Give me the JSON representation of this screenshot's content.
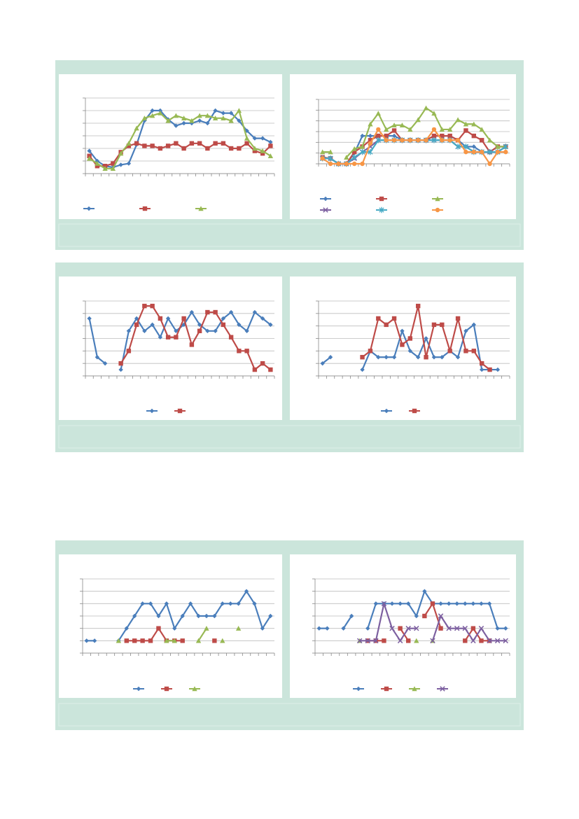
{
  "chart_data": [
    {
      "type": "line",
      "ylim": [
        0,
        6
      ],
      "yticks": [
        0,
        1,
        2,
        3,
        4,
        5,
        6
      ],
      "grid": true,
      "series": [
        {
          "color": "#4a7ebb",
          "marker": "diamond",
          "values": [
            1.8,
            1.0,
            0.6,
            0.5,
            0.7,
            0.8,
            2.3,
            4.2,
            5.0,
            5.0,
            4.3,
            3.8,
            4.0,
            4.0,
            4.2,
            4.0,
            5.0,
            4.8,
            4.8,
            4.2,
            3.4,
            2.8,
            2.8,
            2.5
          ]
        },
        {
          "color": "#be4b48",
          "marker": "square",
          "values": [
            1.4,
            0.6,
            0.6,
            0.8,
            1.7,
            2.2,
            2.4,
            2.2,
            2.2,
            2.0,
            2.2,
            2.4,
            2.0,
            2.4,
            2.4,
            2.0,
            2.4,
            2.4,
            2.0,
            2.0,
            2.4,
            1.8,
            1.6,
            2.2
          ]
        },
        {
          "color": "#98b954",
          "marker": "triangle",
          "values": [
            1.2,
            0.8,
            0.4,
            0.4,
            1.6,
            2.4,
            3.6,
            4.4,
            4.6,
            4.8,
            4.2,
            4.6,
            4.4,
            4.2,
            4.6,
            4.6,
            4.4,
            4.4,
            4.2,
            5.0,
            2.8,
            2.0,
            1.8,
            1.4
          ]
        }
      ]
    },
    {
      "type": "line",
      "ylim": [
        0,
        6
      ],
      "yticks": [
        0,
        1,
        2,
        3,
        4,
        5,
        6
      ],
      "grid": true,
      "series": [
        {
          "color": "#4a7ebb",
          "marker": "diamond",
          "values": [
            0.6,
            0.5,
            0,
            0,
            1.0,
            2.6,
            2.6,
            2.6,
            2.6,
            2.6,
            2.2,
            2.2,
            2.2,
            2.2,
            2.6,
            2.6,
            2.6,
            2.2,
            1.6,
            1.6,
            1.1,
            1.1,
            1.6,
            1.6
          ]
        },
        {
          "color": "#be4b48",
          "marker": "square",
          "values": [
            0.6,
            0.5,
            0,
            0,
            1.1,
            1.6,
            2.2,
            2.6,
            2.6,
            3.1,
            2.2,
            2.2,
            2.2,
            2.2,
            2.6,
            2.6,
            2.6,
            2.2,
            3.1,
            2.6,
            2.2,
            1.1,
            1.6,
            1.6
          ]
        },
        {
          "color": "#98b954",
          "marker": "triangle",
          "values": [
            1.1,
            1.1,
            null,
            0.6,
            1.4,
            1.6,
            3.7,
            4.7,
            3.2,
            3.6,
            3.6,
            3.2,
            4.1,
            5.2,
            4.7,
            3.2,
            3.2,
            4.1,
            3.7,
            3.7,
            3.2,
            2.2,
            1.6,
            1.6
          ]
        },
        {
          "color": "#7d60a0",
          "marker": "x",
          "values": [
            0.5,
            0.5,
            0,
            0,
            0.5,
            1.1,
            1.6,
            2.2,
            2.2,
            2.2,
            2.2,
            2.2,
            2.2,
            2.2,
            2.2,
            2.2,
            2.2,
            1.6,
            1.6,
            1.1,
            1.1,
            1.1,
            1.1,
            1.6
          ]
        },
        {
          "color": "#46aac5",
          "marker": "star",
          "values": [
            0.5,
            0.5,
            0,
            0,
            0.6,
            1.1,
            1.1,
            2.2,
            2.2,
            2.2,
            2.2,
            2.2,
            2.2,
            2.2,
            2.2,
            2.2,
            2.2,
            1.6,
            1.6,
            1.1,
            1.1,
            1.1,
            1.1,
            1.6
          ]
        },
        {
          "color": "#f79646",
          "marker": "circle",
          "values": [
            0.5,
            0,
            0,
            0,
            0,
            0,
            1.9,
            3.2,
            2.2,
            2.2,
            2.2,
            2.2,
            2.2,
            2.2,
            3.2,
            2.2,
            2.2,
            2.2,
            1.1,
            1.1,
            1.1,
            0,
            1.1,
            1.1
          ]
        }
      ]
    },
    {
      "type": "line",
      "ylim": [
        0,
        6
      ],
      "yticks": [
        0,
        1,
        2,
        3,
        4,
        5,
        6
      ],
      "grid": true,
      "series": [
        {
          "color": "#4a7ebb",
          "marker": "diamond",
          "values": [
            4.6,
            1.5,
            1.0,
            null,
            0.5,
            3.6,
            4.6,
            3.6,
            4.1,
            3.1,
            4.6,
            3.6,
            4.1,
            5.1,
            4.1,
            3.6,
            3.6,
            4.6,
            5.1,
            4.1,
            3.6,
            5.1,
            4.6,
            4.1
          ]
        },
        {
          "color": "#be4b48",
          "marker": "square",
          "values": [
            null,
            null,
            null,
            null,
            1.0,
            2.0,
            4.1,
            5.6,
            5.6,
            4.6,
            3.1,
            3.1,
            4.6,
            2.5,
            3.6,
            5.1,
            5.1,
            4.1,
            3.1,
            2.0,
            2.0,
            0.5,
            1.0,
            0.5
          ]
        }
      ]
    },
    {
      "type": "line",
      "ylim": [
        0,
        6
      ],
      "yticks": [
        0,
        1,
        2,
        3,
        4,
        5,
        6
      ],
      "grid": true,
      "series": [
        {
          "color": "#4a7ebb",
          "marker": "diamond",
          "values": [
            1.0,
            1.5,
            null,
            null,
            null,
            0.5,
            2.0,
            1.5,
            1.5,
            1.5,
            3.6,
            2.0,
            1.5,
            3.0,
            1.5,
            1.5,
            2.0,
            1.5,
            3.6,
            4.1,
            0.5,
            0.5,
            0.5,
            null
          ]
        },
        {
          "color": "#be4b48",
          "marker": "square",
          "values": [
            null,
            null,
            null,
            null,
            null,
            1.5,
            2.0,
            4.6,
            4.1,
            4.6,
            2.5,
            3.0,
            5.6,
            1.5,
            4.1,
            4.1,
            2.0,
            4.6,
            2.0,
            2.0,
            1.0,
            0.5,
            null,
            null
          ]
        }
      ]
    },
    {
      "type": "line",
      "ylim": [
        0,
        6
      ],
      "yticks": [
        0,
        1,
        2,
        3,
        4,
        5,
        6
      ],
      "grid": true,
      "series": [
        {
          "color": "#4a7ebb",
          "marker": "diamond",
          "values": [
            1,
            1,
            null,
            null,
            1,
            2,
            3,
            4,
            4,
            3,
            4,
            2,
            3,
            4,
            3,
            3,
            3,
            4,
            4,
            4,
            5,
            4,
            2,
            3
          ]
        },
        {
          "color": "#be4b48",
          "marker": "square",
          "values": [
            null,
            null,
            null,
            null,
            null,
            1,
            1,
            1,
            1,
            2,
            1,
            1,
            1,
            null,
            null,
            null,
            1,
            null,
            null,
            null,
            null,
            null,
            null,
            null
          ]
        },
        {
          "color": "#98b954",
          "marker": "triangle",
          "values": [
            null,
            null,
            null,
            null,
            1,
            null,
            null,
            null,
            null,
            null,
            1,
            1,
            null,
            null,
            1,
            2,
            null,
            1,
            null,
            2,
            null,
            null,
            null,
            null
          ]
        }
      ]
    },
    {
      "type": "line",
      "ylim": [
        0,
        6
      ],
      "yticks": [
        0,
        1,
        2,
        3,
        4,
        5,
        6
      ],
      "grid": true,
      "series": [
        {
          "color": "#4a7ebb",
          "marker": "diamond",
          "values": [
            2,
            2,
            null,
            2,
            3,
            null,
            2,
            4,
            4,
            4,
            4,
            4,
            3,
            5,
            4,
            4,
            4,
            4,
            4,
            4,
            4,
            4,
            2,
            2
          ]
        },
        {
          "color": "#be4b48",
          "marker": "square",
          "values": [
            null,
            null,
            null,
            null,
            null,
            null,
            1,
            1,
            1,
            null,
            2,
            1,
            null,
            3,
            4,
            2,
            null,
            null,
            1,
            2,
            1,
            1,
            null,
            null
          ]
        },
        {
          "color": "#98b954",
          "marker": "triangle",
          "values": [
            null,
            null,
            null,
            null,
            null,
            1,
            null,
            null,
            null,
            null,
            null,
            null,
            1,
            null,
            1,
            null,
            null,
            null,
            null,
            null,
            null,
            null,
            null,
            null
          ]
        },
        {
          "color": "#7d60a0",
          "marker": "x",
          "values": [
            null,
            null,
            null,
            null,
            null,
            1,
            1,
            1,
            4,
            2,
            1,
            2,
            2,
            null,
            1,
            3,
            2,
            2,
            2,
            1,
            2,
            1,
            1,
            1
          ]
        }
      ]
    }
  ]
}
